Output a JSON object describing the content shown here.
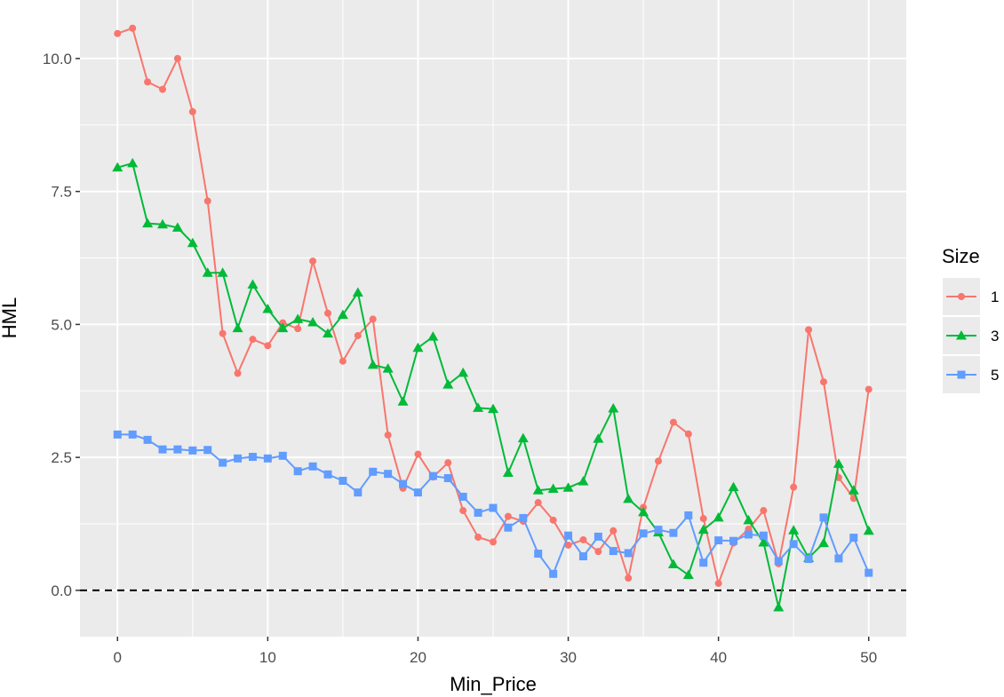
{
  "chart_data": {
    "type": "line",
    "xlabel": "Min_Price",
    "ylabel": "HML",
    "xlim": [
      -2.5,
      52.5
    ],
    "ylim": [
      -0.87,
      11.1
    ],
    "x_ticks": [
      0,
      10,
      20,
      30,
      40,
      50
    ],
    "y_ticks": [
      0.0,
      2.5,
      5.0,
      7.5,
      10.0
    ],
    "x_tick_labels": [
      "0",
      "10",
      "20",
      "30",
      "40",
      "50"
    ],
    "y_tick_labels": [
      "0.0",
      "2.5",
      "5.0",
      "7.5",
      "10.0"
    ],
    "grid": true,
    "reference_line": {
      "y": 0,
      "style": "dashed"
    },
    "legend": {
      "title": "Size",
      "position": "right"
    },
    "x": [
      0,
      1,
      2,
      3,
      4,
      5,
      6,
      7,
      8,
      9,
      10,
      11,
      12,
      13,
      14,
      15,
      16,
      17,
      18,
      19,
      20,
      21,
      22,
      23,
      24,
      25,
      26,
      27,
      28,
      29,
      30,
      31,
      32,
      33,
      34,
      35,
      36,
      37,
      38,
      39,
      40,
      41,
      42,
      43,
      44,
      45,
      46,
      47,
      48,
      49,
      50
    ],
    "series": [
      {
        "name": "1",
        "color": "#F8766D",
        "marker": "circle",
        "values": [
          10.47,
          10.57,
          9.56,
          9.42,
          10.0,
          9.0,
          7.32,
          4.83,
          4.08,
          4.72,
          4.6,
          5.03,
          4.92,
          6.19,
          5.21,
          4.31,
          4.79,
          5.1,
          2.92,
          1.92,
          2.56,
          2.13,
          2.4,
          1.5,
          1.0,
          0.91,
          1.39,
          1.3,
          1.65,
          1.32,
          0.85,
          0.95,
          0.73,
          1.12,
          0.23,
          1.56,
          2.43,
          3.16,
          2.94,
          1.35,
          0.13,
          0.89,
          1.15,
          1.5,
          0.5,
          1.94,
          4.9,
          3.92,
          2.12,
          1.73,
          3.78
        ]
      },
      {
        "name": "3",
        "color": "#00BA38",
        "marker": "triangle",
        "values": [
          7.95,
          8.03,
          6.9,
          6.88,
          6.82,
          6.53,
          5.97,
          5.97,
          4.93,
          5.75,
          5.29,
          4.93,
          5.1,
          5.04,
          4.83,
          5.18,
          5.6,
          4.24,
          4.17,
          3.55,
          4.56,
          4.77,
          3.87,
          4.09,
          3.43,
          3.41,
          2.21,
          2.86,
          1.88,
          1.91,
          1.93,
          2.05,
          2.85,
          3.42,
          1.72,
          1.47,
          1.09,
          0.49,
          0.29,
          1.14,
          1.37,
          1.94,
          1.32,
          0.9,
          -0.32,
          1.13,
          0.61,
          0.89,
          2.38,
          1.88,
          1.12
        ]
      },
      {
        "name": "5",
        "color": "#619CFF",
        "marker": "square",
        "values": [
          2.93,
          2.93,
          2.83,
          2.65,
          2.65,
          2.63,
          2.64,
          2.4,
          2.48,
          2.51,
          2.48,
          2.53,
          2.24,
          2.33,
          2.18,
          2.06,
          1.84,
          2.23,
          2.19,
          2.0,
          1.84,
          2.15,
          2.11,
          1.76,
          1.46,
          1.55,
          1.18,
          1.36,
          0.69,
          0.31,
          1.03,
          0.64,
          1.01,
          0.74,
          0.7,
          1.07,
          1.14,
          1.08,
          1.41,
          0.52,
          0.94,
          0.93,
          1.05,
          1.03,
          0.55,
          0.87,
          0.59,
          1.37,
          0.6,
          0.99,
          0.33
        ]
      }
    ]
  }
}
